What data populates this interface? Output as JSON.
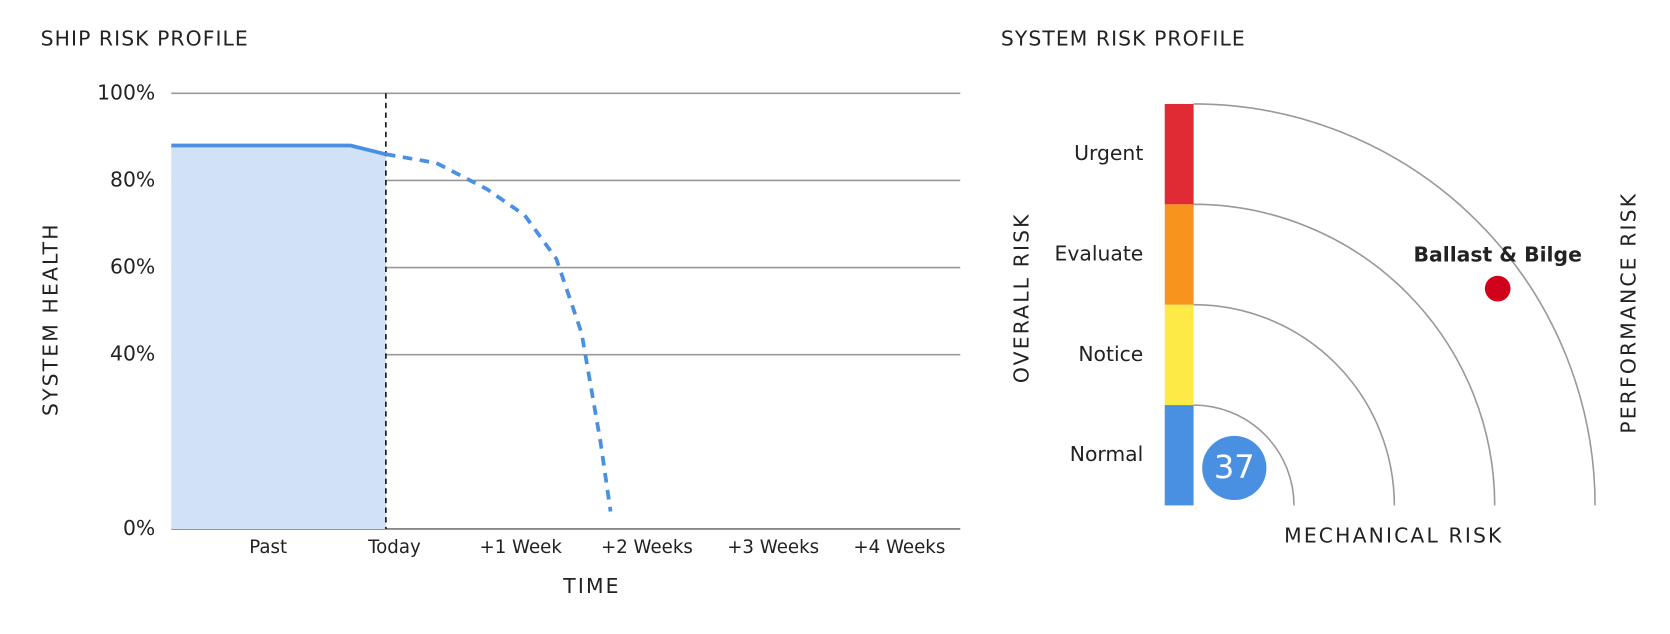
{
  "chart_data": [
    {
      "type": "area",
      "title": "SHIP RISK PROFILE",
      "xlabel": "TIME",
      "ylabel": "SYSTEM HEALTH",
      "xlim": [
        -1.7,
        4.55
      ],
      "xticks": [
        {
          "value": -1,
          "label": "Past"
        },
        {
          "value": 0,
          "label": "Today"
        },
        {
          "value": 1,
          "label": "+1 Week"
        },
        {
          "value": 2,
          "label": "+2 Weeks"
        },
        {
          "value": 3,
          "label": "+3 Weeks"
        },
        {
          "value": 4,
          "label": "+4 Weeks"
        }
      ],
      "ylim": [
        0,
        100
      ],
      "yticks": [
        {
          "value": 0,
          "label": "0%"
        },
        {
          "value": 40,
          "label": "40%"
        },
        {
          "value": 60,
          "label": "60%"
        },
        {
          "value": 80,
          "label": "80%"
        },
        {
          "value": 100,
          "label": "100%"
        }
      ],
      "grid": true,
      "series": [
        {
          "x": [
            -1.7,
            -0.28,
            0
          ],
          "values": [
            88,
            88,
            86
          ],
          "color": "#4a90e2",
          "fill": "#d1e2f6",
          "style": "solid"
        },
        {
          "x": [
            0,
            0.4,
            0.8,
            1.1,
            1.35,
            1.55,
            1.7,
            1.78
          ],
          "values": [
            86,
            84,
            78,
            72,
            62,
            45,
            20,
            4
          ],
          "color": "#4a90e2",
          "style": "dashed"
        }
      ]
    },
    {
      "type": "risk-quadrant",
      "title": "SYSTEM RISK PROFILE",
      "xlabel": "MECHANICAL RISK",
      "ylabel": "OVERALL RISK",
      "y2label": "PERFORMANCE RISK",
      "lim": [
        0,
        4
      ],
      "levels": [
        {
          "label": "Normal",
          "color": "#4a90e2"
        },
        {
          "label": "Notice",
          "color": "#fdea47"
        },
        {
          "label": "Evaluate",
          "color": "#f7941d"
        },
        {
          "label": "Urgent",
          "color": "#e02b35"
        }
      ],
      "points": [
        {
          "name": "Ballast & Bilge",
          "x": 3.03,
          "y": 2.16,
          "color": "#d0021b"
        }
      ],
      "score": 37,
      "score_color": "#4a90e2"
    }
  ]
}
